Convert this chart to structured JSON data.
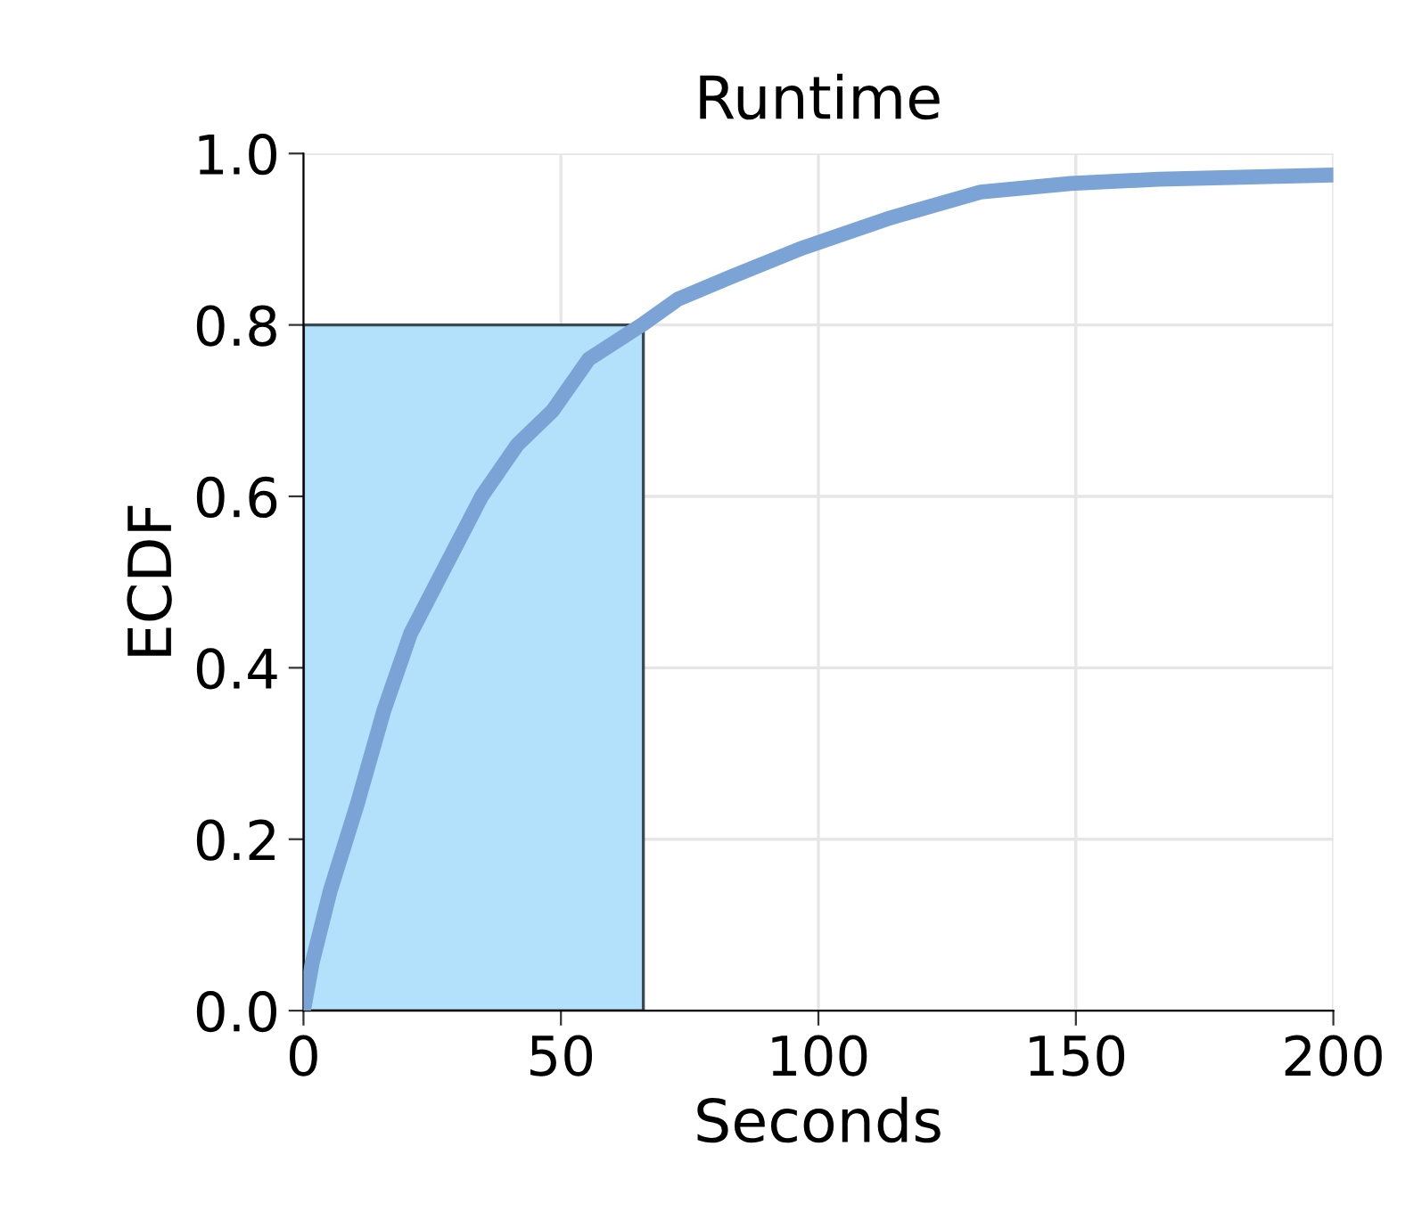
{
  "chart_data": {
    "type": "line",
    "title": "Runtime",
    "xlabel": "Seconds",
    "ylabel": "ECDF",
    "series": [
      {
        "type": "area",
        "color": "#b3e0fa",
        "x": [
          0,
          66
        ],
        "values": [
          0.8,
          0.8
        ]
      },
      {
        "color": "#7ba3d6",
        "x": [
          0,
          1.7,
          5.2,
          10.4,
          15.6,
          20.8,
          27.7,
          34.6,
          41.5,
          48.4,
          55.4,
          65.7,
          72.7,
          83,
          97,
          114,
          131.5,
          149,
          166,
          200
        ],
        "values": [
          0,
          0.056,
          0.14,
          0.24,
          0.35,
          0.44,
          0.52,
          0.6,
          0.66,
          0.7,
          0.76,
          0.8,
          0.83,
          0.856,
          0.89,
          0.925,
          0.955,
          0.965,
          0.97,
          0.975
        ]
      }
    ],
    "xlim": [
      0,
      200
    ],
    "xticks": [
      0,
      50,
      100,
      150,
      200
    ],
    "ylim": [
      0,
      1
    ],
    "yticks": [
      {
        "value": 0,
        "label": "0.0"
      },
      0.2,
      0.4,
      0.6,
      0.8,
      {
        "value": 1,
        "label": "1.0"
      }
    ],
    "grid": true,
    "legend": false
  }
}
